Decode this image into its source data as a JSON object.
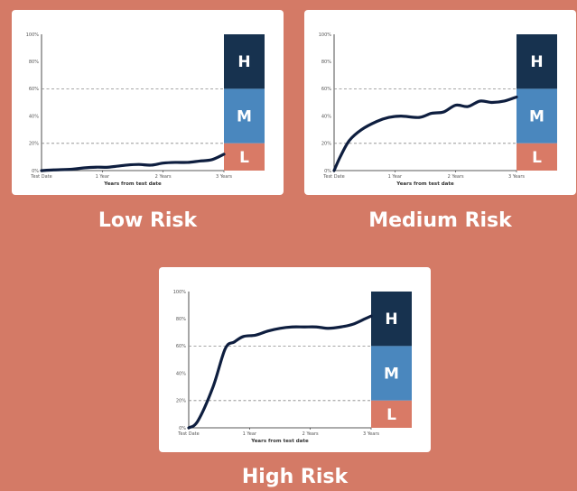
{
  "colors": {
    "background": "#d47a66",
    "line": "#0e1e3f",
    "band_high": "#17324f",
    "band_medium": "#4a87be",
    "band_low": "#d97a66",
    "threshold": "#888888"
  },
  "captions": {
    "low": "Low Risk",
    "medium": "Medium Risk",
    "high": "High Risk"
  },
  "chart_data": [
    {
      "type": "line",
      "id": "low",
      "title": "Low Risk",
      "xlabel": "Years from test date",
      "ylabel": "",
      "x_ticks": [
        "Test Date",
        "1 Year",
        "2 Years",
        "3 Years"
      ],
      "y_ticks": [
        "0%",
        "20%",
        "40%",
        "60%",
        "80%",
        "100%"
      ],
      "xlim": [
        0,
        3
      ],
      "ylim": [
        0,
        100
      ],
      "thresholds": [
        20,
        60
      ],
      "bands": [
        {
          "label": "H",
          "from": 60,
          "to": 100
        },
        {
          "label": "M",
          "from": 20,
          "to": 60
        },
        {
          "label": "L",
          "from": 0,
          "to": 20
        }
      ],
      "x": [
        0,
        0.2,
        0.5,
        0.7,
        0.9,
        1.1,
        1.4,
        1.6,
        1.8,
        2.0,
        2.2,
        2.4,
        2.6,
        2.8,
        3.0
      ],
      "y": [
        0,
        0.5,
        1,
        2,
        2.5,
        2.5,
        4,
        4.5,
        4,
        5.5,
        6,
        6,
        7,
        8,
        12
      ]
    },
    {
      "type": "line",
      "id": "medium",
      "title": "Medium Risk",
      "xlabel": "Years from test date",
      "ylabel": "",
      "x_ticks": [
        "Test Date",
        "1 Year",
        "2 Years",
        "3 Years"
      ],
      "y_ticks": [
        "0%",
        "20%",
        "40%",
        "60%",
        "80%",
        "100%"
      ],
      "xlim": [
        0,
        3
      ],
      "ylim": [
        0,
        100
      ],
      "thresholds": [
        20,
        60
      ],
      "bands": [
        {
          "label": "H",
          "from": 60,
          "to": 100
        },
        {
          "label": "M",
          "from": 20,
          "to": 60
        },
        {
          "label": "L",
          "from": 0,
          "to": 20
        }
      ],
      "x": [
        0,
        0.1,
        0.25,
        0.45,
        0.7,
        0.9,
        1.1,
        1.4,
        1.6,
        1.8,
        2.0,
        2.2,
        2.4,
        2.6,
        2.8,
        3.0
      ],
      "y": [
        0,
        10,
        22,
        30,
        36,
        39,
        40,
        39,
        42,
        43,
        48,
        47,
        51,
        50,
        51,
        54
      ]
    },
    {
      "type": "line",
      "id": "high",
      "title": "High Risk",
      "xlabel": "Years from test date",
      "ylabel": "",
      "x_ticks": [
        "Test Date",
        "1 Year",
        "2 Years",
        "3 Years"
      ],
      "y_ticks": [
        "0%",
        "20%",
        "40%",
        "60%",
        "80%",
        "100%"
      ],
      "xlim": [
        0,
        3
      ],
      "ylim": [
        0,
        100
      ],
      "thresholds": [
        20,
        60
      ],
      "bands": [
        {
          "label": "H",
          "from": 60,
          "to": 100
        },
        {
          "label": "M",
          "from": 20,
          "to": 60
        },
        {
          "label": "L",
          "from": 0,
          "to": 20
        }
      ],
      "x": [
        0,
        0.15,
        0.4,
        0.6,
        0.75,
        0.9,
        1.1,
        1.3,
        1.5,
        1.7,
        1.9,
        2.1,
        2.3,
        2.5,
        2.7,
        2.9,
        3.0
      ],
      "y": [
        0,
        5,
        30,
        58,
        63,
        67,
        68,
        71,
        73,
        74,
        74,
        74,
        73,
        74,
        76,
        80,
        82
      ]
    }
  ]
}
